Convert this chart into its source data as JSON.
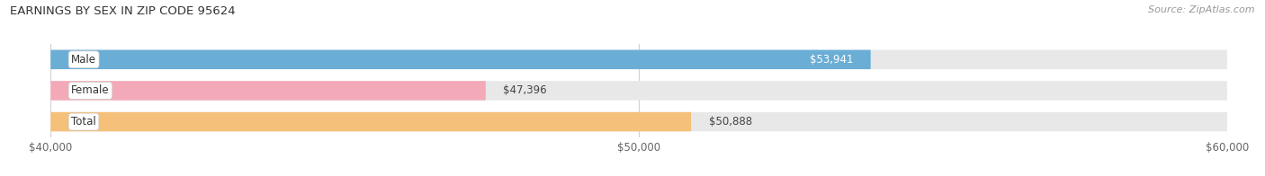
{
  "title": "EARNINGS BY SEX IN ZIP CODE 95624",
  "source": "Source: ZipAtlas.com",
  "categories": [
    "Male",
    "Female",
    "Total"
  ],
  "values": [
    53941,
    47396,
    50888
  ],
  "bar_colors": [
    "#6aaed6",
    "#f4a9b8",
    "#f5c07a"
  ],
  "track_color": "#e8e8e8",
  "value_label_inside": [
    true,
    false,
    false
  ],
  "value_label_colors": [
    "#ffffff",
    "#555555",
    "#555555"
  ],
  "xlim": [
    40000,
    60000
  ],
  "xticks": [
    40000,
    50000,
    60000
  ],
  "xtick_labels": [
    "$40,000",
    "$50,000",
    "$60,000"
  ],
  "bar_height": 0.62,
  "figsize": [
    14.06,
    1.96
  ],
  "dpi": 100,
  "title_fontsize": 9.5,
  "label_fontsize": 8.5,
  "tick_fontsize": 8.5,
  "source_fontsize": 8,
  "background_color": "#ffffff",
  "grid_color": "#d0d0d0",
  "cat_label_fontsize": 8.5
}
